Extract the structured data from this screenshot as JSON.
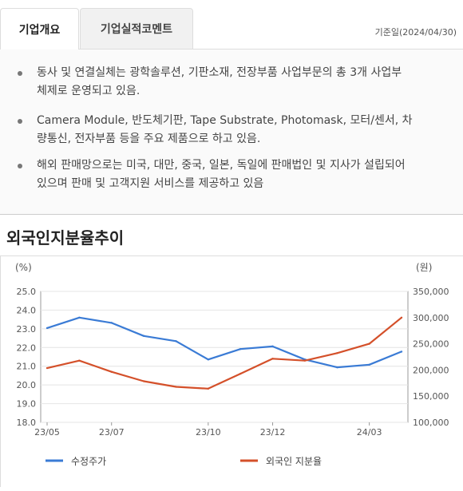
{
  "tabs": [
    {
      "label": "기업개요",
      "active": true
    },
    {
      "label": "기업실적코멘트",
      "active": false
    }
  ],
  "base_date": "기준일(2024/04/30)",
  "overview": {
    "items": [
      {
        "line1": "동사 및 연결실체는 광학솔루션, 기판소재, 전장부품 사업부문의 총 3개 사업부",
        "line2": "체제로 운영되고 있음."
      },
      {
        "line1": "Camera Module, 반도체기판, Tape Substrate, Photomask, 모터/센서, 차",
        "line2": "량통신, 전자부품 등을 주요 제품으로 하고 있음."
      },
      {
        "line1": "해외 판매망으로는 미국, 대만, 중국, 일본, 독일에 판매법인 및 지사가 설립되어",
        "line2": "있으며 판매 및 고객지원 서비스를 제공하고 있음"
      }
    ]
  },
  "section_title": "외국인지분율추이",
  "chart_data": {
    "type": "line",
    "left_unit": "(%)",
    "right_unit": "(원)",
    "left_ticks": [
      "25.0",
      "24.0",
      "23.0",
      "22.0",
      "21.0",
      "20.0",
      "19.0",
      "18.0"
    ],
    "right_ticks": [
      "350,000",
      "300,000",
      "250,000",
      "200,000",
      "150,000",
      "100,000"
    ],
    "left_ylim": [
      18.0,
      25.0
    ],
    "right_ylim": [
      100000,
      350000
    ],
    "x_ticks": [
      "23/05",
      "23/07",
      "23/10",
      "23/12",
      "24/03"
    ],
    "grid": true,
    "colors": {
      "price": "#3a7bd5",
      "foreign": "#d4502a"
    },
    "series": [
      {
        "name": "수정주가",
        "axis": "right",
        "x": [
          "23/05",
          "23/06",
          "23/07",
          "23/08",
          "23/09",
          "23/10",
          "23/11",
          "23/12",
          "24/01",
          "24/02",
          "24/03",
          "24/04"
        ],
        "values": [
          280000,
          300000,
          290000,
          265000,
          255000,
          220000,
          240000,
          245000,
          220000,
          205000,
          210000,
          235000
        ]
      },
      {
        "name": "외국인 지분율",
        "axis": "left",
        "x": [
          "23/05",
          "23/06",
          "23/07",
          "23/08",
          "23/09",
          "23/10",
          "23/11",
          "23/12",
          "24/01",
          "24/02",
          "24/03",
          "24/04"
        ],
        "values": [
          20.9,
          21.3,
          20.7,
          20.2,
          19.9,
          19.8,
          20.6,
          21.4,
          21.3,
          21.7,
          22.2,
          23.6
        ]
      }
    ]
  }
}
